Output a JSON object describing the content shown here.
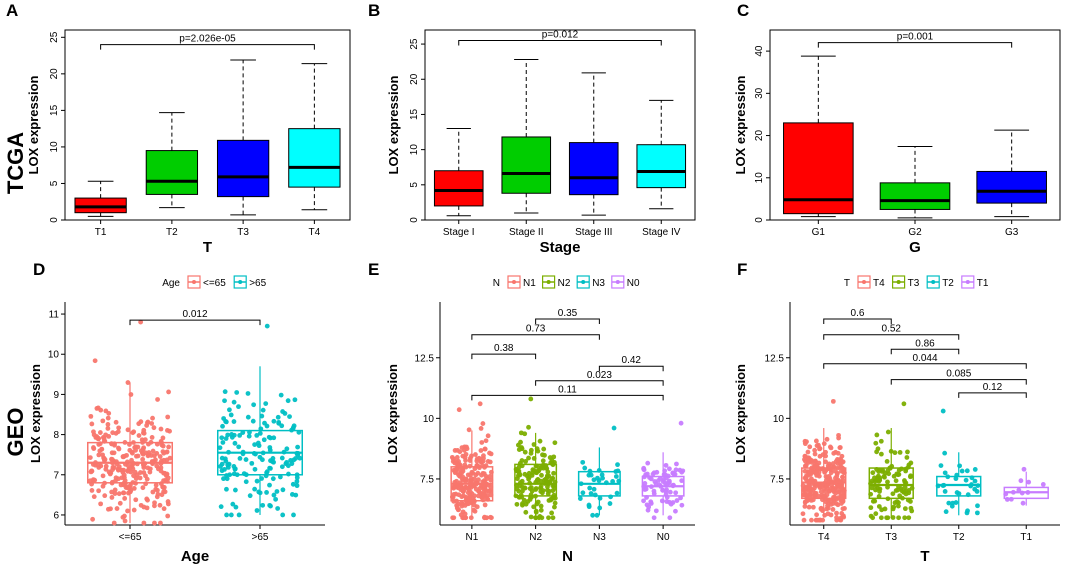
{
  "row_labels": {
    "top": "TCGA",
    "bottom": "GEO"
  },
  "chart_data": [
    {
      "panel": "A",
      "type": "box",
      "style": "base",
      "xlabel": "T",
      "ylabel": "LOX expression",
      "ylim": [
        0,
        26
      ],
      "yticks": [
        0,
        5,
        10,
        15,
        20,
        25
      ],
      "categories": [
        "T1",
        "T2",
        "T3",
        "T4"
      ],
      "colors": [
        "#ff0000",
        "#00cd00",
        "#0000ff",
        "#00ffff"
      ],
      "boxes": [
        {
          "min": 0.5,
          "q1": 1.0,
          "median": 1.8,
          "q3": 3.0,
          "max": 5.3
        },
        {
          "min": 1.7,
          "q1": 3.5,
          "median": 5.3,
          "q3": 9.5,
          "max": 14.7
        },
        {
          "min": 0.7,
          "q1": 3.2,
          "median": 5.9,
          "q3": 10.9,
          "max": 21.9
        },
        {
          "min": 1.4,
          "q1": 4.5,
          "median": 7.2,
          "q3": 12.5,
          "max": 21.4
        }
      ],
      "brackets": [
        {
          "from": 0,
          "to": 3,
          "label": "p=2.026e-05",
          "y": 24
        }
      ]
    },
    {
      "panel": "B",
      "type": "box",
      "style": "base",
      "xlabel": "Stage",
      "ylabel": "LOX expression",
      "ylim": [
        0,
        27
      ],
      "yticks": [
        0,
        5,
        10,
        15,
        20,
        25
      ],
      "categories": [
        "Stage I",
        "Stage II",
        "Stage III",
        "Stage IV"
      ],
      "colors": [
        "#ff0000",
        "#00cd00",
        "#0000ff",
        "#00ffff"
      ],
      "boxes": [
        {
          "min": 0.6,
          "q1": 2.0,
          "median": 4.2,
          "q3": 7.0,
          "max": 13.0
        },
        {
          "min": 1.0,
          "q1": 3.8,
          "median": 6.6,
          "q3": 11.8,
          "max": 22.8
        },
        {
          "min": 0.7,
          "q1": 3.6,
          "median": 6.0,
          "q3": 11.0,
          "max": 20.9
        },
        {
          "min": 1.6,
          "q1": 4.6,
          "median": 6.9,
          "q3": 10.7,
          "max": 17.0
        }
      ],
      "brackets": [
        {
          "from": 0,
          "to": 3,
          "label": "p=0.012",
          "y": 25.5
        }
      ]
    },
    {
      "panel": "C",
      "type": "box",
      "style": "base",
      "xlabel": "G",
      "ylabel": "LOX expression",
      "ylim": [
        0,
        45
      ],
      "yticks": [
        0,
        10,
        20,
        30,
        40
      ],
      "categories": [
        "G1",
        "G2",
        "G3"
      ],
      "colors": [
        "#ff0000",
        "#00cd00",
        "#0000ff"
      ],
      "boxes": [
        {
          "min": 0.8,
          "q1": 1.5,
          "median": 4.8,
          "q3": 23.0,
          "max": 38.8
        },
        {
          "min": 0.5,
          "q1": 2.5,
          "median": 4.6,
          "q3": 8.8,
          "max": 17.4
        },
        {
          "min": 0.8,
          "q1": 4.0,
          "median": 6.8,
          "q3": 11.5,
          "max": 21.3
        }
      ],
      "brackets": [
        {
          "from": 0,
          "to": 2,
          "label": "p=0.001",
          "y": 42
        }
      ]
    },
    {
      "panel": "D",
      "type": "box",
      "style": "gg",
      "xlabel": "Age",
      "ylabel": "LOX expression",
      "ylim": [
        5.75,
        11.3
      ],
      "yticks": [
        6,
        7,
        8,
        9,
        10,
        11
      ],
      "legend_title": "Age",
      "categories": [
        "<=65",
        ">65"
      ],
      "colors": [
        "#f8766d",
        "#00bfc4"
      ],
      "boxes": [
        {
          "min": 5.8,
          "q1": 6.8,
          "median": 7.3,
          "q3": 7.8,
          "max": 9.3,
          "n": 300,
          "ptop": 10.8,
          "pbot": 5.8
        },
        {
          "min": 6.0,
          "q1": 7.0,
          "median": 7.55,
          "q3": 8.1,
          "max": 9.7,
          "n": 160,
          "ptop": 10.7,
          "pbot": 6.0
        }
      ],
      "brackets": [
        {
          "from": 0,
          "to": 1,
          "label": "0.012",
          "y": 10.85
        }
      ]
    },
    {
      "panel": "E",
      "type": "box",
      "style": "gg",
      "xlabel": "N",
      "ylabel": "LOX expression",
      "ylim": [
        5.6,
        14.8
      ],
      "yticks": [
        7.5,
        10.0,
        12.5
      ],
      "legend_title": "N",
      "categories": [
        "N1",
        "N2",
        "N3",
        "N0"
      ],
      "colors": [
        "#f8766d",
        "#7cae00",
        "#00bfc4",
        "#c77cff"
      ],
      "boxes": [
        {
          "min": 5.9,
          "q1": 6.6,
          "median": 7.3,
          "q3": 8.0,
          "max": 9.5,
          "n": 230,
          "ptop": 10.6,
          "pbot": 5.9
        },
        {
          "min": 5.9,
          "q1": 6.8,
          "median": 7.3,
          "q3": 8.1,
          "max": 9.4,
          "n": 160,
          "ptop": 10.8,
          "pbot": 5.9
        },
        {
          "min": 6.0,
          "q1": 6.8,
          "median": 7.3,
          "q3": 7.8,
          "max": 8.8,
          "n": 35,
          "ptop": 9.6,
          "pbot": 6.0
        },
        {
          "min": 6.0,
          "q1": 6.8,
          "median": 7.2,
          "q3": 7.6,
          "max": 8.6,
          "n": 80,
          "ptop": 9.8,
          "pbot": 5.9
        }
      ],
      "brackets": [
        {
          "from": 1,
          "to": 2,
          "label": "0.35",
          "y": 14.1
        },
        {
          "from": 0,
          "to": 2,
          "label": "0.73",
          "y": 13.45
        },
        {
          "from": 0,
          "to": 1,
          "label": "0.38",
          "y": 12.65
        },
        {
          "from": 2,
          "to": 3,
          "label": "0.42",
          "y": 12.15
        },
        {
          "from": 1,
          "to": 3,
          "label": "0.023",
          "y": 11.55
        },
        {
          "from": 0,
          "to": 3,
          "label": "0.11",
          "y": 10.95
        }
      ]
    },
    {
      "panel": "F",
      "type": "box",
      "style": "gg",
      "xlabel": "T",
      "ylabel": "LOX expression",
      "ylim": [
        5.6,
        14.8
      ],
      "yticks": [
        7.5,
        10.0,
        12.5
      ],
      "legend_title": "T",
      "categories": [
        "T4",
        "T3",
        "T2",
        "T1"
      ],
      "colors": [
        "#f8766d",
        "#7cae00",
        "#00bfc4",
        "#c77cff"
      ],
      "boxes": [
        {
          "min": 5.9,
          "q1": 6.7,
          "median": 7.35,
          "q3": 7.95,
          "max": 9.6,
          "n": 300,
          "ptop": 10.7,
          "pbot": 5.8
        },
        {
          "min": 5.9,
          "q1": 6.7,
          "median": 7.25,
          "q3": 7.95,
          "max": 9.6,
          "n": 110,
          "ptop": 10.6,
          "pbot": 5.9
        },
        {
          "min": 6.0,
          "q1": 6.8,
          "median": 7.25,
          "q3": 7.6,
          "max": 8.6,
          "n": 35,
          "ptop": 10.3,
          "pbot": 6.1
        },
        {
          "min": 6.4,
          "q1": 6.7,
          "median": 6.95,
          "q3": 7.15,
          "max": 7.8,
          "n": 12,
          "ptop": 7.9,
          "pbot": 6.5
        }
      ],
      "brackets": [
        {
          "from": 0,
          "to": 1,
          "label": "0.6",
          "y": 14.1
        },
        {
          "from": 0,
          "to": 2,
          "label": "0.52",
          "y": 13.45
        },
        {
          "from": 1,
          "to": 2,
          "label": "0.86",
          "y": 12.85
        },
        {
          "from": 0,
          "to": 3,
          "label": "0.044",
          "y": 12.25
        },
        {
          "from": 1,
          "to": 3,
          "label": "0.085",
          "y": 11.6
        },
        {
          "from": 2,
          "to": 3,
          "label": "0.12",
          "y": 11.05
        }
      ]
    }
  ]
}
